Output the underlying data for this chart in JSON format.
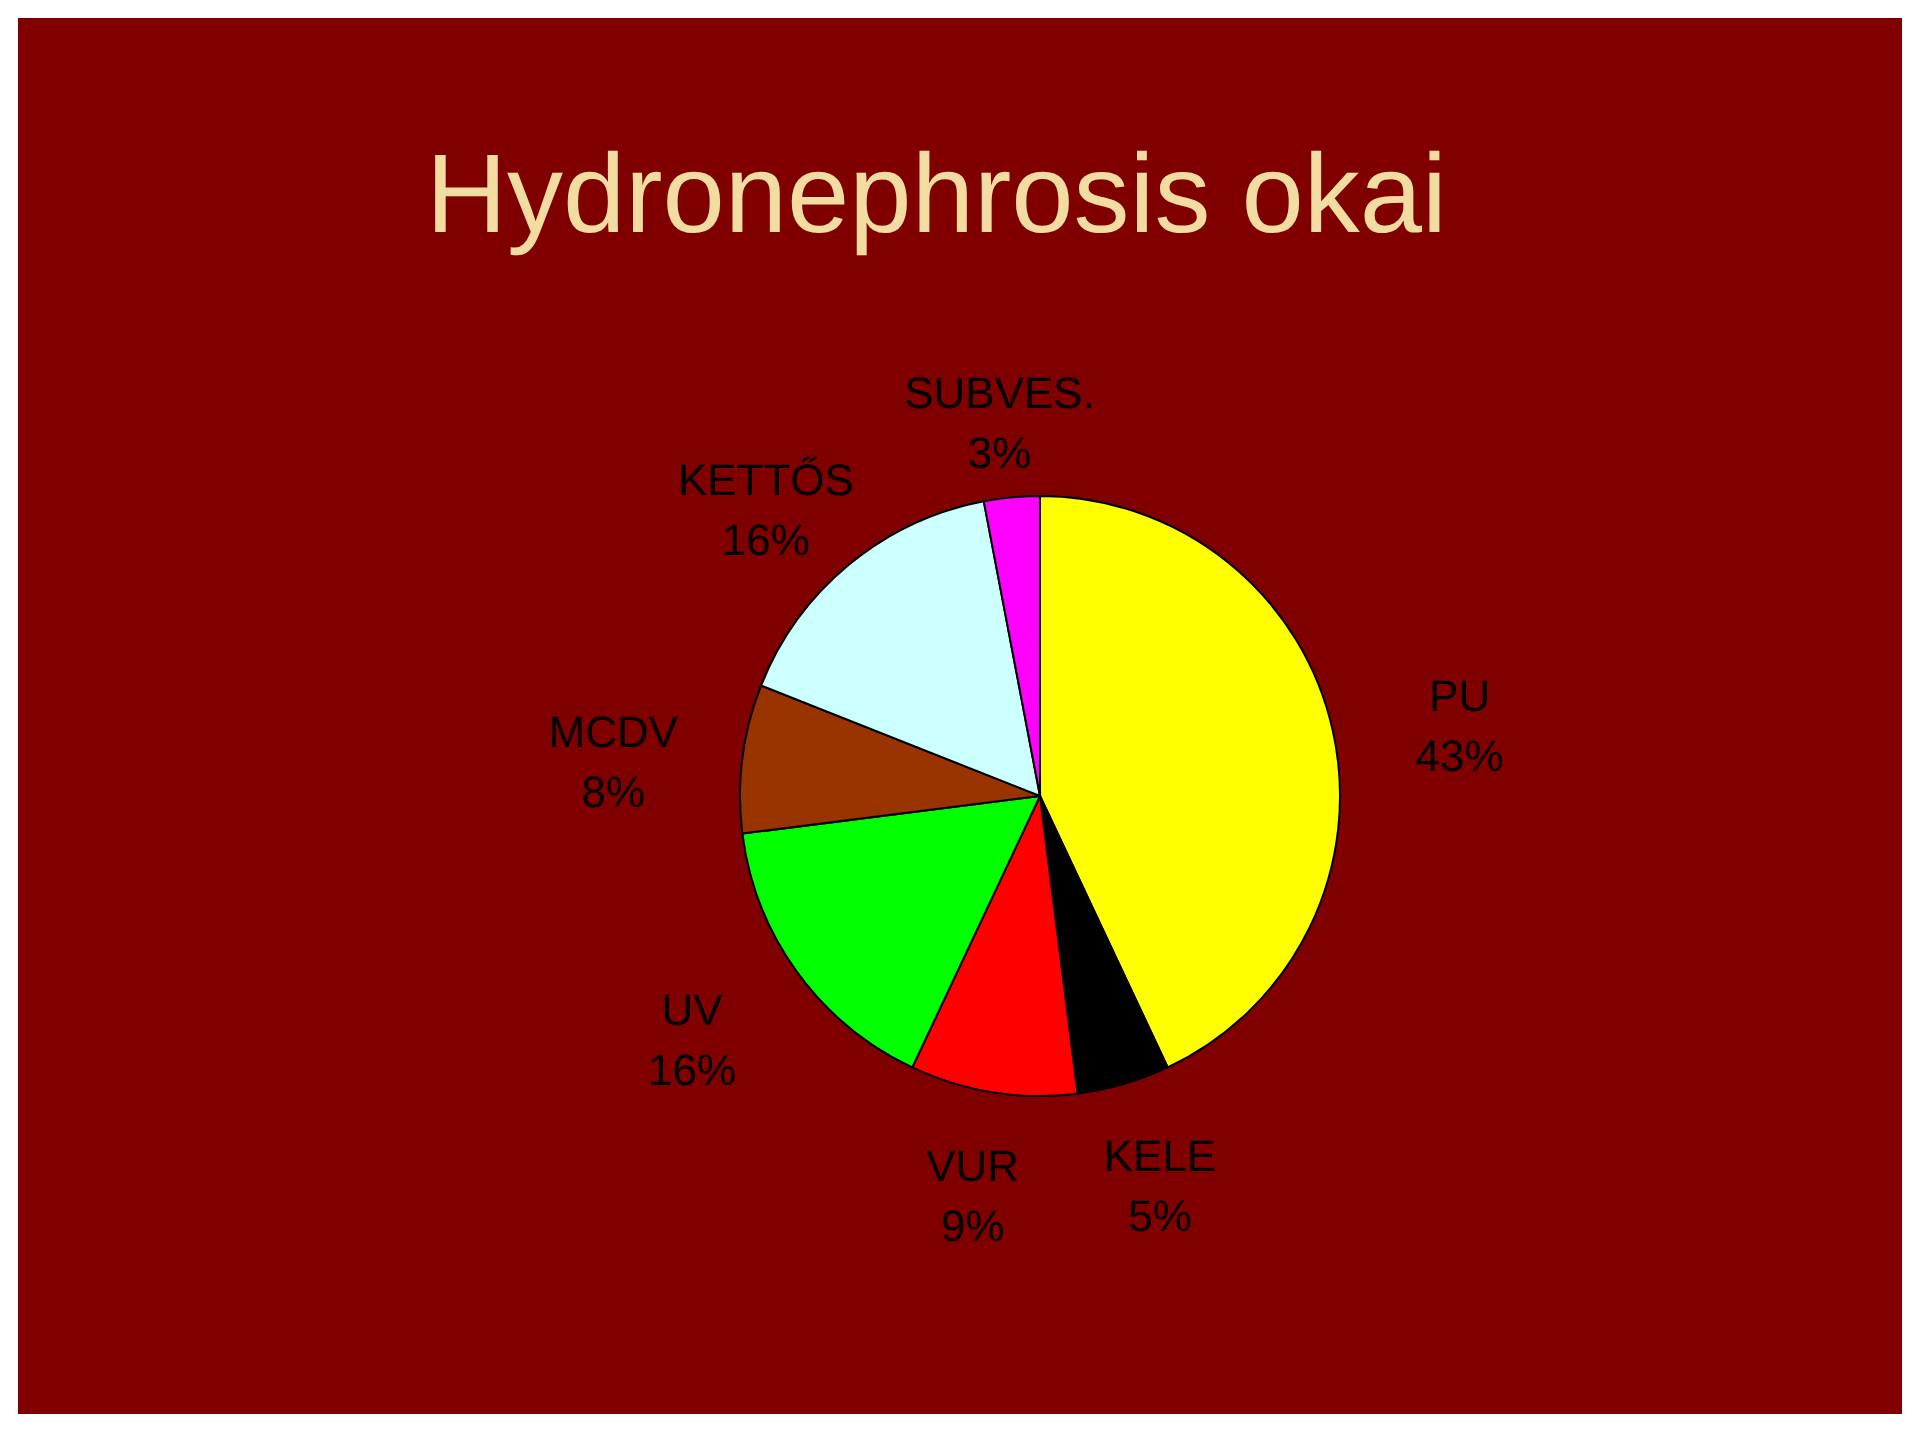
{
  "chart_data": {
    "type": "pie",
    "title": "Hydronephrosis okai",
    "categories": [
      "PU",
      "KELE",
      "VUR",
      "UV",
      "MCDV",
      "KETTŐS",
      "SUBVES."
    ],
    "values": [
      43,
      5,
      9,
      16,
      8,
      16,
      3
    ],
    "value_labels": [
      "43%",
      "5%",
      "9%",
      "16%",
      "8%",
      "16%",
      "3%"
    ],
    "colors": [
      "#ffff00",
      "#000000",
      "#ff0000",
      "#00ff00",
      "#993300",
      "#ccffff",
      "#ff00ff"
    ]
  }
}
